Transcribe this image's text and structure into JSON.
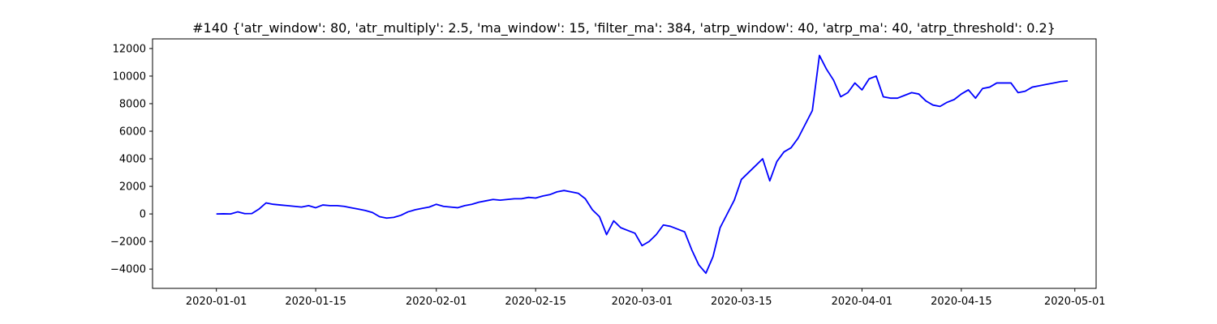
{
  "chart_data": {
    "type": "line",
    "title": "#140 {'atr_window': 80, 'atr_multiply': 2.5, 'ma_window': 15, 'filter_ma': 384, 'atrp_window': 40, 'atrp_ma': 40, 'atrp_threshold': 0.2}",
    "xlabel": "",
    "ylabel": "",
    "x_axis_type": "date",
    "xlim": [
      "2019-12-23",
      "2020-05-04"
    ],
    "ylim": [
      -5400,
      12700
    ],
    "x_ticks": [
      "2020-01-01",
      "2020-01-15",
      "2020-02-01",
      "2020-02-15",
      "2020-03-01",
      "2020-03-15",
      "2020-04-01",
      "2020-04-15",
      "2020-05-01"
    ],
    "x_tick_labels": [
      "2020-01-01",
      "2020-01-15",
      "2020-02-01",
      "2020-02-15",
      "2020-03-01",
      "2020-03-15",
      "2020-04-01",
      "2020-04-15",
      "2020-05-01"
    ],
    "y_ticks": [
      -4000,
      -2000,
      0,
      2000,
      4000,
      6000,
      8000,
      10000,
      12000
    ],
    "y_tick_labels": [
      "−4000",
      "−2000",
      "0",
      "2000",
      "4000",
      "6000",
      "8000",
      "10000",
      "12000"
    ],
    "grid": false,
    "legend": "none",
    "series": [
      {
        "color": "#0000ff",
        "x": [
          "2020-01-01",
          "2020-01-02",
          "2020-01-03",
          "2020-01-04",
          "2020-01-05",
          "2020-01-06",
          "2020-01-07",
          "2020-01-08",
          "2020-01-09",
          "2020-01-10",
          "2020-01-11",
          "2020-01-12",
          "2020-01-13",
          "2020-01-14",
          "2020-01-15",
          "2020-01-16",
          "2020-01-17",
          "2020-01-18",
          "2020-01-19",
          "2020-01-20",
          "2020-01-21",
          "2020-01-22",
          "2020-01-23",
          "2020-01-24",
          "2020-01-25",
          "2020-01-26",
          "2020-01-27",
          "2020-01-28",
          "2020-01-29",
          "2020-01-30",
          "2020-01-31",
          "2020-02-01",
          "2020-02-02",
          "2020-02-03",
          "2020-02-04",
          "2020-02-05",
          "2020-02-06",
          "2020-02-07",
          "2020-02-08",
          "2020-02-09",
          "2020-02-10",
          "2020-02-11",
          "2020-02-12",
          "2020-02-13",
          "2020-02-14",
          "2020-02-15",
          "2020-02-16",
          "2020-02-17",
          "2020-02-18",
          "2020-02-19",
          "2020-02-20",
          "2020-02-21",
          "2020-02-22",
          "2020-02-23",
          "2020-02-24",
          "2020-02-25",
          "2020-02-26",
          "2020-02-27",
          "2020-02-28",
          "2020-02-29",
          "2020-03-01",
          "2020-03-02",
          "2020-03-03",
          "2020-03-04",
          "2020-03-05",
          "2020-03-06",
          "2020-03-07",
          "2020-03-08",
          "2020-03-09",
          "2020-03-10",
          "2020-03-11",
          "2020-03-12",
          "2020-03-13",
          "2020-03-14",
          "2020-03-15",
          "2020-03-16",
          "2020-03-17",
          "2020-03-18",
          "2020-03-19",
          "2020-03-20",
          "2020-03-21",
          "2020-03-22",
          "2020-03-23",
          "2020-03-24",
          "2020-03-25",
          "2020-03-26",
          "2020-03-27",
          "2020-03-28",
          "2020-03-29",
          "2020-03-30",
          "2020-03-31",
          "2020-04-01",
          "2020-04-02",
          "2020-04-03",
          "2020-04-04",
          "2020-04-05",
          "2020-04-06",
          "2020-04-07",
          "2020-04-08",
          "2020-04-09",
          "2020-04-10",
          "2020-04-11",
          "2020-04-12",
          "2020-04-13",
          "2020-04-14",
          "2020-04-15",
          "2020-04-16",
          "2020-04-17",
          "2020-04-18",
          "2020-04-19",
          "2020-04-20",
          "2020-04-21",
          "2020-04-22",
          "2020-04-23",
          "2020-04-24",
          "2020-04-25",
          "2020-04-26",
          "2020-04-27",
          "2020-04-28",
          "2020-04-29",
          "2020-04-30"
        ],
        "y": [
          0,
          10,
          0,
          150,
          20,
          30,
          350,
          800,
          700,
          650,
          600,
          550,
          500,
          600,
          450,
          650,
          600,
          600,
          550,
          450,
          350,
          250,
          100,
          -200,
          -300,
          -250,
          -100,
          150,
          300,
          400,
          500,
          700,
          550,
          500,
          450,
          600,
          700,
          850,
          950,
          1050,
          1000,
          1050,
          1100,
          1100,
          1200,
          1150,
          1300,
          1400,
          1600,
          1700,
          1600,
          1500,
          1100,
          300,
          -200,
          -1500,
          -500,
          -1000,
          -1200,
          -1400,
          -2300,
          -2000,
          -1500,
          -800,
          -900,
          -1100,
          -1300,
          -2600,
          -3700,
          -4300,
          -3100,
          -1000,
          0,
          1000,
          2500,
          3000,
          3500,
          4000,
          2400,
          3800,
          4500,
          4800,
          5500,
          6500,
          7500,
          11500,
          10500,
          9700,
          8500,
          8800,
          9500,
          9000,
          9800,
          10000,
          8500,
          8400,
          8400,
          8600,
          8800,
          8700,
          8200,
          7900,
          7800,
          8100,
          8300,
          8700,
          9000,
          8400,
          9100,
          9200,
          9500,
          9500,
          9500,
          8800,
          8900,
          9200,
          9300,
          9400,
          9500,
          9600,
          9650
        ]
      }
    ]
  }
}
